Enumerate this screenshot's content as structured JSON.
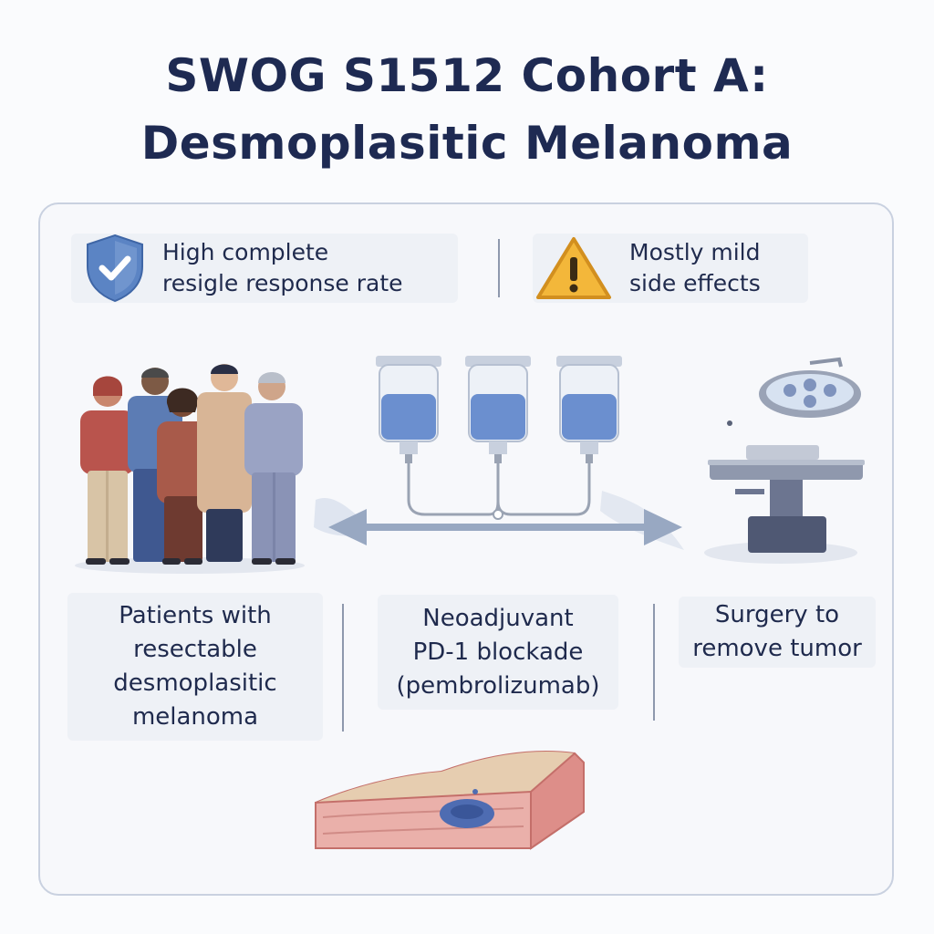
{
  "title": {
    "line1": "SWOG S1512 Cohort A:",
    "line2": "Desmoplasitic Melanoma"
  },
  "outcomes": [
    {
      "icon": "shield-check-icon",
      "line1": "High complete",
      "line2": "resigle response rate"
    },
    {
      "icon": "warning-triangle-icon",
      "line1": "Mostly mild",
      "line2": "side effects"
    }
  ],
  "steps": [
    {
      "icon": "patients-group-icon",
      "lines": [
        "Patients with",
        "resectable",
        "desmoplasitic",
        "melanoma"
      ]
    },
    {
      "icon": "iv-infusion-bags-icon",
      "lines": [
        "Neoadjuvant",
        "PD-1 blockade",
        "(pembrolizumab)"
      ]
    },
    {
      "icon": "surgery-table-icon",
      "lines": [
        "Surgery to",
        "remove tumor"
      ]
    }
  ],
  "tumor_icon": "skin-tissue-tumor-icon",
  "colors": {
    "title": "#1e2a52",
    "shield": "#5b84c4",
    "warning": "#f3b73a",
    "fluid": "#6b8fcf",
    "tissue": "#e8a9a4"
  }
}
